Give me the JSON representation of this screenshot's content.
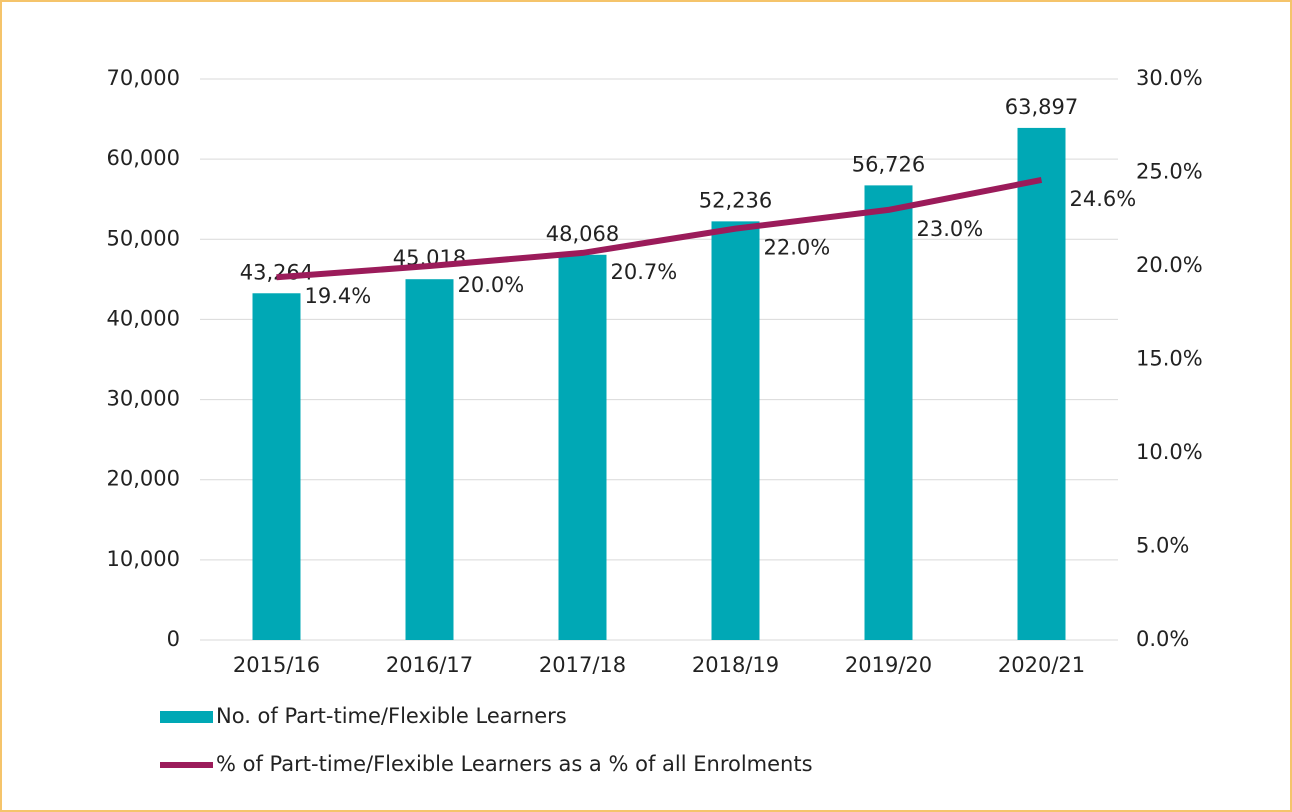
{
  "chart_data": {
    "type": "bar",
    "categories": [
      "2015/16",
      "2016/17",
      "2017/18",
      "2018/19",
      "2019/20",
      "2020/21"
    ],
    "series": [
      {
        "name": "No. of Part-time/Flexible Learners",
        "type": "bar",
        "color": "#00a8b5",
        "values": [
          43264,
          45018,
          48068,
          52236,
          56726,
          63897
        ],
        "value_labels": [
          "43,264",
          "45,018",
          "48,068",
          "52,236",
          "56,726",
          "63,897"
        ]
      },
      {
        "name": "% of Part-time/Flexible Learners as a % of all Enrolments",
        "type": "line",
        "axis": "y2",
        "color": "#9b1b5a",
        "values": [
          19.4,
          20.0,
          20.7,
          22.0,
          23.0,
          24.6
        ],
        "value_labels": [
          "19.4%",
          "20.0%",
          "20.7%",
          "22.0%",
          "23.0%",
          "24.6%"
        ]
      }
    ],
    "ylim": [
      0,
      70000
    ],
    "yticks": [
      0,
      {
        "value": 10000,
        "label": "10,000"
      },
      {
        "value": 20000,
        "label": "20,000"
      },
      {
        "value": 30000,
        "label": "30,000"
      },
      {
        "value": 40000,
        "label": "40,000"
      },
      {
        "value": 50000,
        "label": "50,000"
      },
      {
        "value": 60000,
        "label": "60,000"
      },
      {
        "value": 70000,
        "label": "70,000"
      }
    ],
    "y2lim": [
      0,
      30
    ],
    "y2ticks": [
      {
        "value": 0,
        "label": "0.0%"
      },
      {
        "value": 5,
        "label": "5.0%"
      },
      {
        "value": 10,
        "label": "10.0%"
      },
      {
        "value": 15,
        "label": "15.0%"
      },
      {
        "value": 20,
        "label": "20.0%"
      },
      {
        "value": 25,
        "label": "25.0%"
      },
      {
        "value": 30,
        "label": "30.0%"
      }
    ],
    "grid": true,
    "legend": "bottom-left"
  }
}
